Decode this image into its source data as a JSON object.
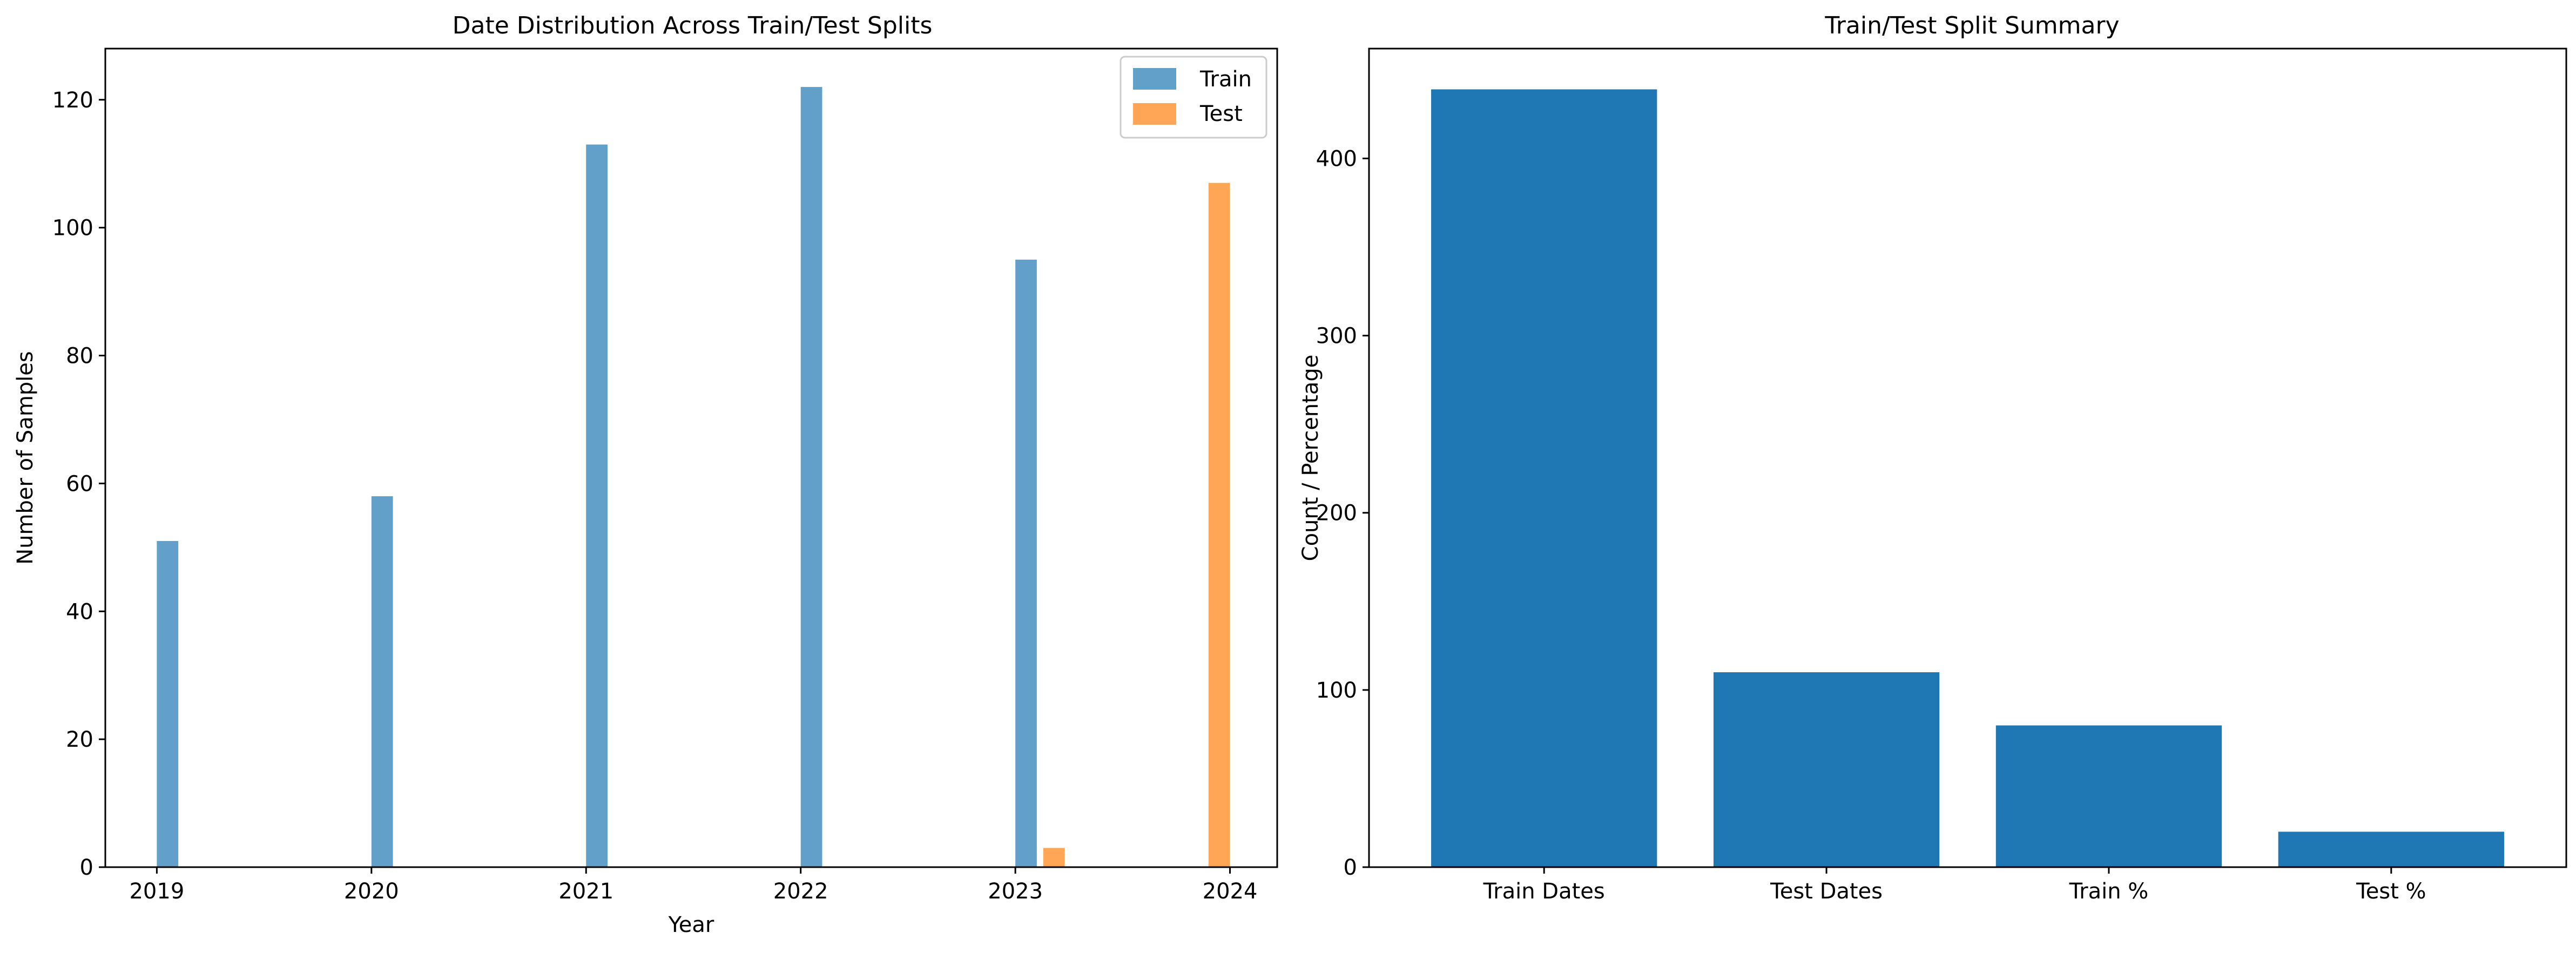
{
  "colors": {
    "train": "#1f77b4",
    "test": "#ff7f0e",
    "summary_bar": "#1f77b4"
  },
  "chart_data": [
    {
      "type": "bar",
      "title": "Date Distribution Across Train/Test Splits",
      "xlabel": "Year",
      "ylabel": "Number of Samples",
      "xlim": [
        2018.76,
        2024.22
      ],
      "ylim": [
        0,
        128
      ],
      "xticks": [
        "2019",
        "2020",
        "2021",
        "2022",
        "2023",
        "2024"
      ],
      "yticks": [
        0,
        20,
        40,
        60,
        80,
        100,
        120
      ],
      "bar_opacity": 0.7,
      "legend": {
        "placement": "top-right",
        "entries": [
          "Train",
          "Test"
        ]
      },
      "series": [
        {
          "name": "Train",
          "bins": [
            {
              "x_start": 2019.0,
              "x_end": 2019.1,
              "value": 51
            },
            {
              "x_start": 2020.0,
              "x_end": 2020.1,
              "value": 58
            },
            {
              "x_start": 2021.0,
              "x_end": 2021.1,
              "value": 113
            },
            {
              "x_start": 2022.0,
              "x_end": 2022.1,
              "value": 122
            },
            {
              "x_start": 2023.0,
              "x_end": 2023.1,
              "value": 95
            }
          ]
        },
        {
          "name": "Test",
          "bins": [
            {
              "x_start": 2023.13,
              "x_end": 2023.23,
              "value": 3
            },
            {
              "x_start": 2023.9,
              "x_end": 2024.0,
              "value": 107
            }
          ]
        }
      ]
    },
    {
      "type": "bar",
      "title": "Train/Test Split Summary",
      "xlabel": "",
      "ylabel": "Count / Percentage",
      "ylim": [
        0,
        462
      ],
      "yticks": [
        0,
        100,
        200,
        300,
        400
      ],
      "categories": [
        "Train Dates",
        "Test Dates",
        "Train %",
        "Test %"
      ],
      "values": [
        439,
        110,
        80,
        20
      ]
    }
  ]
}
